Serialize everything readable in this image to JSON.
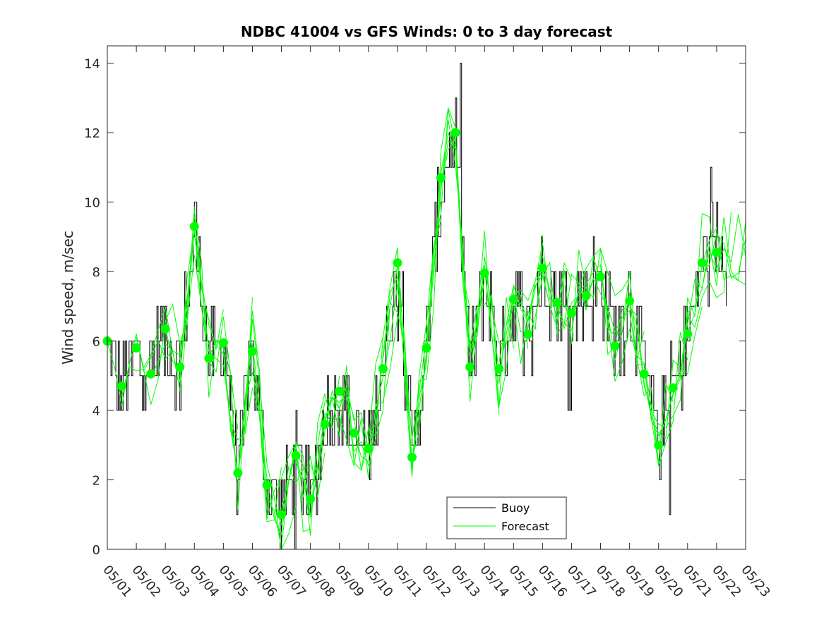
{
  "chart_data": {
    "type": "line",
    "title": "NDBC 41004 vs GFS Winds: 0 to 3 day forecast",
    "xlabel": "",
    "ylabel": "Wind speed, m/sec",
    "x_tick_labels": [
      "05/01",
      "05/02",
      "05/03",
      "05/04",
      "05/05",
      "05/06",
      "05/07",
      "05/08",
      "05/09",
      "05/10",
      "05/11",
      "05/12",
      "05/13",
      "05/14",
      "05/15",
      "05/16",
      "05/17",
      "05/18",
      "05/19",
      "05/20",
      "05/21",
      "05/22",
      "05/23"
    ],
    "y_ticks": [
      0,
      2,
      4,
      6,
      8,
      10,
      12,
      14
    ],
    "ylim": [
      0,
      14.5
    ],
    "grid": false,
    "legend_position": "bottom-center",
    "legend": [
      "Buoy",
      "Forecast"
    ],
    "colors": {
      "buoy": "#000000",
      "forecast": "#00ff00",
      "markers": "#00ff00"
    },
    "buoy_daily_approx": [
      {
        "date": "05/01",
        "value": 5
      },
      {
        "date": "05/02",
        "value": 6
      },
      {
        "date": "05/03",
        "value": 5
      },
      {
        "date": "05/04",
        "value": 8
      },
      {
        "date": "05/05",
        "value": 5
      },
      {
        "date": "05/06",
        "value": 3
      },
      {
        "date": "05/07",
        "value": 2
      },
      {
        "date": "05/08",
        "value": 2
      },
      {
        "date": "05/09",
        "value": 4
      },
      {
        "date": "05/10",
        "value": 6
      },
      {
        "date": "05/11",
        "value": 7
      },
      {
        "date": "05/12",
        "value": 6
      },
      {
        "date": "05/13",
        "value": 9
      },
      {
        "date": "05/14",
        "value": 6
      },
      {
        "date": "05/15",
        "value": 6
      },
      {
        "date": "05/16",
        "value": 7
      },
      {
        "date": "05/17",
        "value": 7
      },
      {
        "date": "05/18",
        "value": 8
      },
      {
        "date": "05/19",
        "value": 5
      },
      {
        "date": "05/20",
        "value": 2
      },
      {
        "date": "05/21",
        "value": 6
      },
      {
        "date": "05/22",
        "value": 9
      }
    ],
    "series": [
      {
        "name": "Forecast",
        "points": [
          {
            "date": "05/01 00Z",
            "value": 6.0
          },
          {
            "date": "05/01 12Z",
            "value": 4.7
          },
          {
            "date": "05/02 00Z",
            "value": 5.8
          },
          {
            "date": "05/02 12Z",
            "value": 5.05
          },
          {
            "date": "05/03 00Z",
            "value": 6.35
          },
          {
            "date": "05/03 12Z",
            "value": 5.25
          },
          {
            "date": "05/04 00Z",
            "value": 9.3
          },
          {
            "date": "05/04 12Z",
            "value": 5.5
          },
          {
            "date": "05/05 00Z",
            "value": 5.95
          },
          {
            "date": "05/05 12Z",
            "value": 2.2
          },
          {
            "date": "05/06 00Z",
            "value": 5.7
          },
          {
            "date": "05/06 12Z",
            "value": 1.85
          },
          {
            "date": "05/07 00Z",
            "value": 1.0
          },
          {
            "date": "05/07 12Z",
            "value": 2.7
          },
          {
            "date": "05/08 00Z",
            "value": 1.45
          },
          {
            "date": "05/08 12Z",
            "value": 3.6
          },
          {
            "date": "05/09 00Z",
            "value": 4.55
          },
          {
            "date": "05/09 12Z",
            "value": 3.35
          },
          {
            "date": "05/10 00Z",
            "value": 2.9
          },
          {
            "date": "05/10 12Z",
            "value": 5.2
          },
          {
            "date": "05/11 00Z",
            "value": 8.25
          },
          {
            "date": "05/11 12Z",
            "value": 2.65
          },
          {
            "date": "05/12 00Z",
            "value": 5.8
          },
          {
            "date": "05/12 12Z",
            "value": 10.7
          },
          {
            "date": "05/13 00Z",
            "value": 12.0
          },
          {
            "date": "05/13 12Z",
            "value": 5.25
          },
          {
            "date": "05/14 00Z",
            "value": 7.95
          },
          {
            "date": "05/14 12Z",
            "value": 5.2
          },
          {
            "date": "05/15 00Z",
            "value": 7.2
          },
          {
            "date": "05/15 12Z",
            "value": 6.2
          },
          {
            "date": "05/16 00Z",
            "value": 8.1
          },
          {
            "date": "05/16 12Z",
            "value": 7.1
          },
          {
            "date": "05/17 00Z",
            "value": 6.8
          },
          {
            "date": "05/17 12Z",
            "value": 7.3
          },
          {
            "date": "05/18 00Z",
            "value": 7.85
          },
          {
            "date": "05/18 12Z",
            "value": 5.85
          },
          {
            "date": "05/19 00Z",
            "value": 7.15
          },
          {
            "date": "05/19 12Z",
            "value": 5.05
          },
          {
            "date": "05/20 00Z",
            "value": 3.0
          },
          {
            "date": "05/20 12Z",
            "value": 4.65
          },
          {
            "date": "05/21 00Z",
            "value": 6.2
          },
          {
            "date": "05/21 12Z",
            "value": 8.25
          },
          {
            "date": "05/22 00Z",
            "value": 8.55
          }
        ]
      }
    ]
  }
}
